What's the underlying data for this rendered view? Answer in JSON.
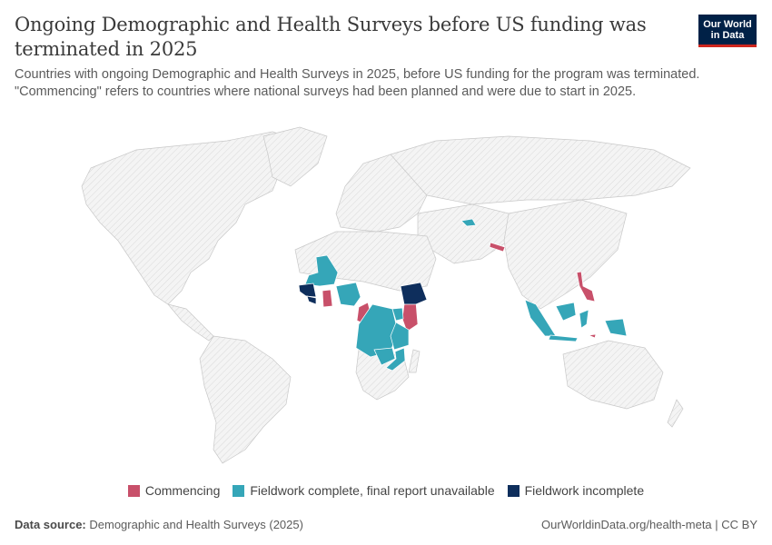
{
  "header": {
    "title": "Ongoing Demographic and Health Surveys before US funding was terminated in 2025",
    "subtitle": "Countries with ongoing Demographic and Health Surveys in 2025, before US funding for the program was terminated. \"Commencing\" refers to countries where national surveys had been planned and were due to start in 2025.",
    "logo_line1": "Our World",
    "logo_line2": "in Data"
  },
  "colors": {
    "commencing": "#c8506a",
    "fieldwork_complete": "#35a6b8",
    "fieldwork_incomplete": "#0e2e5c",
    "no_data_fill": "#f2f2f2",
    "border": "#c8c8c8"
  },
  "legend": {
    "commencing": "Commencing",
    "fieldwork_complete": "Fieldwork complete, final report unavailable",
    "fieldwork_incomplete": "Fieldwork incomplete"
  },
  "map_data": {
    "commencing": [
      "Ghana",
      "Cameroon",
      "Kenya",
      "Nepal",
      "Philippines",
      "Timor-Leste"
    ],
    "fieldwork_complete": [
      "Mali",
      "Nigeria",
      "DR Congo",
      "Tanzania",
      "Zambia",
      "Mozambique",
      "Uganda",
      "Tajikistan",
      "Indonesia"
    ],
    "fieldwork_incomplete": [
      "Guinea",
      "Liberia",
      "Ethiopia"
    ]
  },
  "footer": {
    "source_label": "Data source:",
    "source_value": "Demographic and Health Surveys (2025)",
    "right": "OurWorldinData.org/health-meta | CC BY"
  }
}
